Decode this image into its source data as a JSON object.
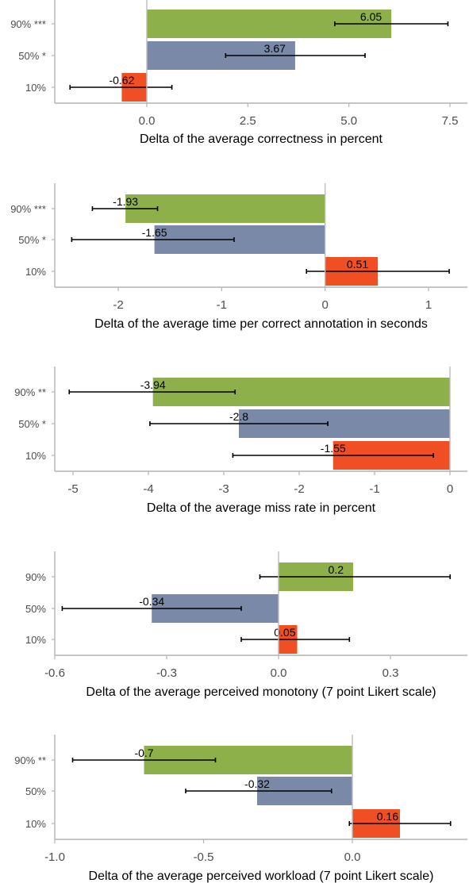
{
  "colors": {
    "10%": "#f04e23",
    "50%": "#7a89a8",
    "90%": "#8db04a",
    "zero_line": "#bdbdbd",
    "axis": "#b3b3b3",
    "error_bar": "#000000"
  },
  "chart_data": [
    {
      "type": "bar",
      "orientation": "horizontal",
      "xlabel": "Delta of the average correctness in percent",
      "xlim": [
        -2.1,
        7.6
      ],
      "xticks": [
        0.0,
        2.5,
        5.0,
        7.5
      ],
      "xtick_labels": [
        "0.0",
        "2.5",
        "5.0",
        "7.5"
      ],
      "bars": [
        {
          "group": "90%",
          "label": "90% ***",
          "value": 6.05,
          "value_label": "6.05",
          "ci": [
            4.65,
            7.45
          ]
        },
        {
          "group": "50%",
          "label": "50% *",
          "value": 3.67,
          "value_label": "3.67",
          "ci": [
            1.95,
            5.4
          ]
        },
        {
          "group": "10%",
          "label": "10%",
          "value": -0.62,
          "value_label": "-0.62",
          "ci": [
            -1.9,
            0.62
          ]
        }
      ]
    },
    {
      "type": "bar",
      "orientation": "horizontal",
      "xlabel": "Delta of the average time per correct annotation in seconds",
      "xlim": [
        -2.6,
        1.3
      ],
      "xticks": [
        -2,
        -1,
        0,
        1
      ],
      "xtick_labels": [
        "-2",
        "-1",
        "0",
        "1"
      ],
      "bars": [
        {
          "group": "90%",
          "label": "90% ***",
          "value": -1.93,
          "value_label": "-1.93",
          "ci": [
            -2.25,
            -1.62
          ]
        },
        {
          "group": "50%",
          "label": "50% *",
          "value": -1.65,
          "value_label": "-1.65",
          "ci": [
            -2.45,
            -0.88
          ]
        },
        {
          "group": "10%",
          "label": "10%",
          "value": 0.51,
          "value_label": "0.51",
          "ci": [
            -0.18,
            1.2
          ]
        }
      ]
    },
    {
      "type": "bar",
      "orientation": "horizontal",
      "xlabel": "Delta of the average miss rate in percent",
      "xlim": [
        -5.2,
        0.15
      ],
      "xticks": [
        -5,
        -4,
        -3,
        -2,
        -1,
        0
      ],
      "xtick_labels": [
        "-5",
        "-4",
        "-3",
        "-2",
        "-1",
        "0"
      ],
      "bars": [
        {
          "group": "90%",
          "label": "90% **",
          "value": -3.94,
          "value_label": "-3.94",
          "ci": [
            -5.05,
            -2.85
          ]
        },
        {
          "group": "50%",
          "label": "50% *",
          "value": -2.8,
          "value_label": "-2.8",
          "ci": [
            -3.98,
            -1.62
          ]
        },
        {
          "group": "10%",
          "label": "10%",
          "value": -1.55,
          "value_label": "-1.55",
          "ci": [
            -2.88,
            -0.22
          ]
        }
      ]
    },
    {
      "type": "bar",
      "orientation": "horizontal",
      "xlabel": "Delta of the average perceived monotony (7 point Likert scale)",
      "xlim": [
        -0.63,
        0.5
      ],
      "xticks": [
        -0.6,
        -0.3,
        0.0,
        0.3
      ],
      "xtick_labels": [
        "-0.6",
        "-0.3",
        "0.0",
        "0.3"
      ],
      "bars": [
        {
          "group": "90%",
          "label": "90%",
          "value": 0.2,
          "value_label": "0.2",
          "ci": [
            -0.05,
            0.46
          ]
        },
        {
          "group": "50%",
          "label": "50%",
          "value": -0.34,
          "value_label": "-0.34",
          "ci": [
            -0.58,
            -0.1
          ]
        },
        {
          "group": "10%",
          "label": "10%",
          "value": 0.05,
          "value_label": "0.05",
          "ci": [
            -0.1,
            0.19
          ]
        }
      ]
    },
    {
      "type": "bar",
      "orientation": "horizontal",
      "xlabel": "Delta of the average perceived workload (7 point Likert scale)",
      "xlim": [
        -1.02,
        0.38
      ],
      "xticks": [
        -1.0,
        -0.5,
        0.0
      ],
      "xtick_labels": [
        "-1.0",
        "-0.5",
        "0.0"
      ],
      "bars": [
        {
          "group": "90%",
          "label": "90% **",
          "value": -0.7,
          "value_label": "-0.7",
          "ci": [
            -0.94,
            -0.46
          ]
        },
        {
          "group": "50%",
          "label": "50%",
          "value": -0.32,
          "value_label": "-0.32",
          "ci": [
            -0.56,
            -0.07
          ]
        },
        {
          "group": "10%",
          "label": "10%",
          "value": 0.16,
          "value_label": "0.16",
          "ci": [
            -0.01,
            0.33
          ]
        }
      ]
    }
  ]
}
